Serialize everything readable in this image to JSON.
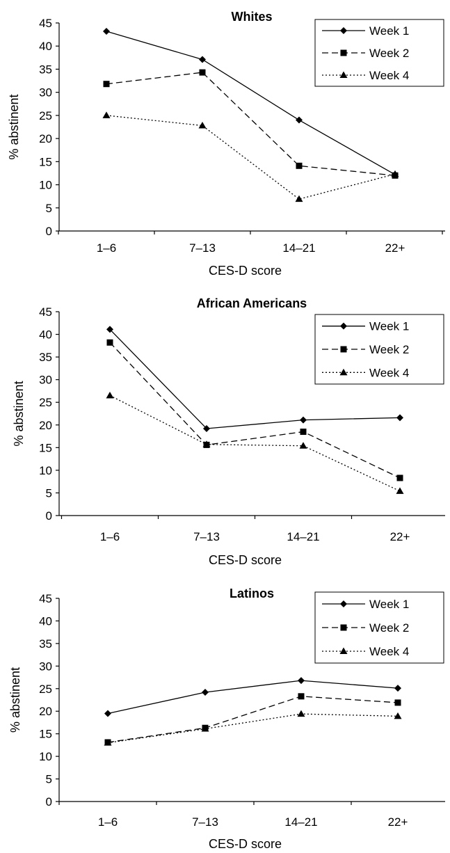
{
  "chart_data": [
    {
      "type": "line",
      "title": "Whites",
      "xlabel": "CES-D score",
      "ylabel": "% abstinent",
      "categories": [
        "1–6",
        "7–13",
        "14–21",
        "22+"
      ],
      "ylim": [
        0,
        45
      ],
      "yticks": [
        "0",
        "5",
        "10",
        "15",
        "20",
        "25",
        "30",
        "35",
        "40",
        "45"
      ],
      "legend_position": "top-right",
      "series": [
        {
          "name": "Week 1",
          "values": [
            43.2,
            37.1,
            24.0,
            12.2
          ]
        },
        {
          "name": "Week 2",
          "values": [
            31.8,
            34.3,
            14.1,
            12.0
          ]
        },
        {
          "name": "Week 4",
          "values": [
            25.0,
            22.8,
            6.9,
            12.3
          ]
        }
      ]
    },
    {
      "type": "line",
      "title": "African Americans",
      "xlabel": "CES-D score",
      "ylabel": "% abstinent",
      "categories": [
        "1–6",
        "7–13",
        "14–21",
        "22+"
      ],
      "ylim": [
        0,
        45
      ],
      "yticks": [
        "0",
        "5",
        "10",
        "15",
        "20",
        "25",
        "30",
        "35",
        "40",
        "45"
      ],
      "legend_position": "top-right",
      "series": [
        {
          "name": "Week 1",
          "values": [
            41.1,
            19.2,
            21.1,
            21.6
          ]
        },
        {
          "name": "Week 2",
          "values": [
            38.2,
            15.6,
            18.5,
            8.3
          ]
        },
        {
          "name": "Week 4",
          "values": [
            26.5,
            15.7,
            15.4,
            5.4
          ]
        }
      ]
    },
    {
      "type": "line",
      "title": "Latinos",
      "xlabel": "CES-D score",
      "ylabel": "% abstinent",
      "categories": [
        "1–6",
        "7–13",
        "14–21",
        "22+"
      ],
      "ylim": [
        0,
        45
      ],
      "yticks": [
        "0",
        "5",
        "10",
        "15",
        "20",
        "25",
        "30",
        "35",
        "40",
        "45"
      ],
      "legend_position": "top-right",
      "series": [
        {
          "name": "Week 1",
          "values": [
            19.5,
            24.2,
            26.8,
            25.1
          ]
        },
        {
          "name": "Week 2",
          "values": [
            13.1,
            16.3,
            23.3,
            21.9
          ]
        },
        {
          "name": "Week 4",
          "values": [
            13.0,
            16.1,
            19.4,
            18.9
          ]
        }
      ]
    }
  ],
  "series_styles": [
    {
      "marker": "diamond",
      "dash": "solid",
      "color": "#000000"
    },
    {
      "marker": "square",
      "dash": "dashed",
      "color": "#000000"
    },
    {
      "marker": "triangle",
      "dash": "dotted",
      "color": "#000000"
    }
  ]
}
